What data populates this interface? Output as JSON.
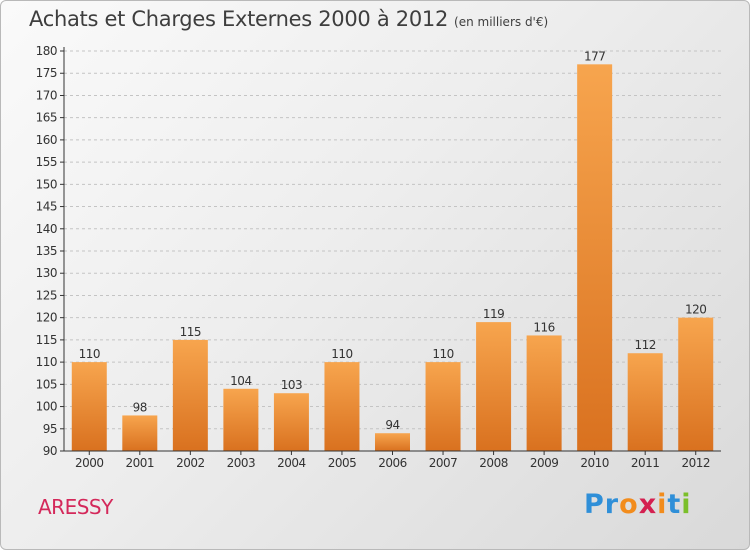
{
  "title": "Achats et Charges Externes 2000 à 2012",
  "unit_note": "(en milliers d'€)",
  "location_label": "ARESSY",
  "logo": {
    "letters": [
      "P",
      "r",
      "o",
      "x",
      "i",
      "t",
      "i"
    ],
    "colors": [
      "#2f8fd8",
      "#2f8fd8",
      "#f28c1c",
      "#d42050",
      "#f28c1c",
      "#2f8fd8",
      "#7bbf2a"
    ]
  },
  "colors": {
    "bar_light": "#f7a54e",
    "bar_dark": "#d9711f",
    "axis": "#333333",
    "grid": "#c4c4c4"
  },
  "chart_data": {
    "type": "bar",
    "title": "Achats et Charges Externes 2000 à 2012",
    "subtitle": "(en milliers d'€)",
    "categories": [
      "2000",
      "2001",
      "2002",
      "2003",
      "2004",
      "2005",
      "2006",
      "2007",
      "2008",
      "2009",
      "2010",
      "2011",
      "2012"
    ],
    "values": [
      110,
      98,
      115,
      104,
      103,
      110,
      94,
      110,
      119,
      116,
      177,
      112,
      120
    ],
    "data_labels": [
      "110",
      "98",
      "115",
      "104",
      "103",
      "110",
      "94",
      "110",
      "119",
      "116",
      "177",
      "112",
      "120"
    ],
    "ylim": [
      90,
      180
    ],
    "yticks": [
      90,
      95,
      100,
      105,
      110,
      115,
      120,
      125,
      130,
      135,
      140,
      145,
      150,
      155,
      160,
      165,
      170,
      175,
      180
    ],
    "ytick_labels": [
      "90",
      "95",
      "100",
      "105",
      "110",
      "115",
      "120",
      "125",
      "130",
      "135",
      "140",
      "145",
      "150",
      "155",
      "160",
      "165",
      "170",
      "175",
      "180"
    ],
    "grid": true,
    "xlabel": "",
    "ylabel": ""
  }
}
